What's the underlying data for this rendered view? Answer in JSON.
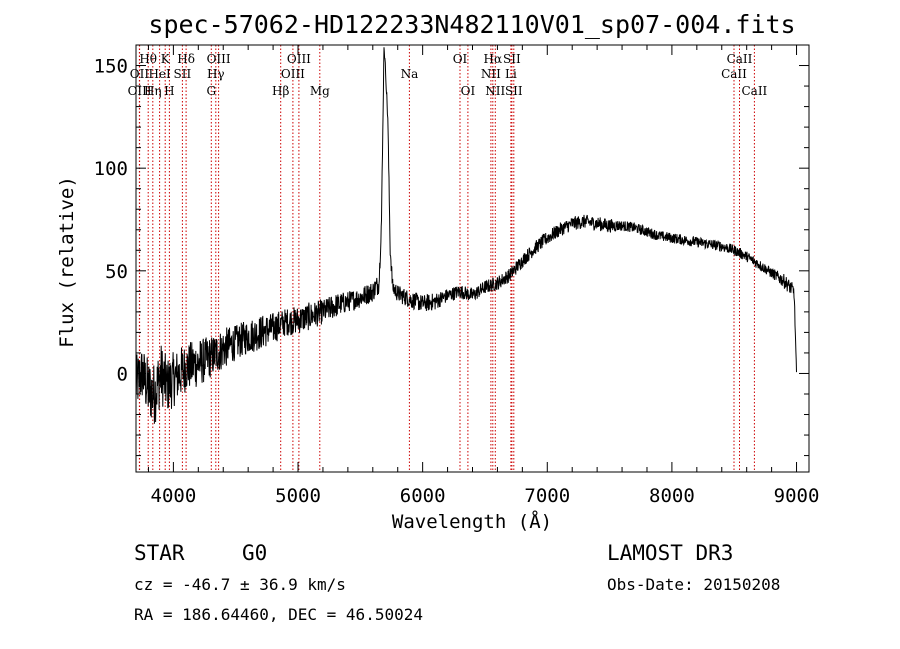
{
  "chart_data": {
    "type": "line",
    "title": "spec-57062-HD122233N482110V01_sp07-004.fits",
    "xlabel": "Wavelength (Å)",
    "ylabel": "Flux (relative)",
    "xlim": [
      3700,
      9100
    ],
    "ylim": [
      -48,
      160
    ],
    "xticks": [
      4000,
      5000,
      6000,
      7000,
      8000,
      9000
    ],
    "yticks": [
      0,
      50,
      100,
      150
    ],
    "spectrum": {
      "x": [
        3700,
        3750,
        3800,
        3850,
        3900,
        3950,
        4000,
        4100,
        4200,
        4300,
        4400,
        4500,
        4600,
        4700,
        4800,
        4900,
        5000,
        5100,
        5200,
        5300,
        5400,
        5500,
        5600,
        5650,
        5670,
        5690,
        5700,
        5720,
        5740,
        5760,
        5800,
        5900,
        6000,
        6100,
        6200,
        6300,
        6400,
        6500,
        6600,
        6700,
        6800,
        6900,
        7000,
        7100,
        7200,
        7300,
        7400,
        7500,
        7600,
        7700,
        7800,
        7900,
        8000,
        8100,
        8200,
        8300,
        8400,
        8500,
        8600,
        8700,
        8800,
        8900,
        8980,
        9000
      ],
      "y": [
        -5,
        0,
        -8,
        -10,
        0,
        -6,
        -3,
        3,
        5,
        8,
        12,
        15,
        18,
        20,
        22,
        25,
        26,
        28,
        30,
        33,
        35,
        37,
        40,
        44,
        75,
        160,
        150,
        125,
        60,
        42,
        39,
        36,
        34,
        35,
        38,
        40,
        38,
        42,
        44,
        48,
        55,
        61,
        66,
        70,
        73,
        74,
        73,
        72,
        72,
        71,
        69,
        67,
        66,
        65,
        64,
        63,
        62,
        60,
        57,
        53,
        49,
        45,
        40,
        0
      ],
      "noise": [
        8,
        8,
        9,
        9,
        9,
        8,
        8,
        7,
        7,
        6,
        6,
        5,
        5,
        5,
        4.5,
        4,
        4,
        4,
        3.5,
        3.5,
        3,
        3,
        3,
        3,
        2,
        1,
        1,
        2,
        2,
        2.5,
        2.5,
        2.5,
        2.5,
        2.5,
        2,
        2,
        2,
        2,
        2,
        2,
        2,
        2,
        2,
        2,
        2,
        2,
        2,
        2,
        1.5,
        1.5,
        1.5,
        1.5,
        1.5,
        1.5,
        1.5,
        1.5,
        1.5,
        1.5,
        1.5,
        1.5,
        1.5,
        2,
        2,
        1
      ]
    },
    "reference_lines": [
      {
        "label": "Hθ",
        "wavelength": 3798,
        "row": 1
      },
      {
        "label": "OII",
        "wavelength": 3727,
        "row": 2
      },
      {
        "label": "OIII",
        "wavelength": 3729,
        "row": 3
      },
      {
        "label": "Hη",
        "wavelength": 3835,
        "row": 3
      },
      {
        "label": "HeI",
        "wavelength": 3889,
        "row": 2
      },
      {
        "label": "K",
        "wavelength": 3934,
        "row": 1
      },
      {
        "label": "H",
        "wavelength": 3968,
        "row": 3
      },
      {
        "label": "SII",
        "wavelength": 4072,
        "row": 2
      },
      {
        "label": "Hδ",
        "wavelength": 4102,
        "row": 1
      },
      {
        "label": "G",
        "wavelength": 4304,
        "row": 3
      },
      {
        "label": "OIII",
        "wavelength": 4363,
        "row": 1
      },
      {
        "label": "Hγ",
        "wavelength": 4340,
        "row": 2
      },
      {
        "label": "Hβ",
        "wavelength": 4861,
        "row": 3
      },
      {
        "label": "OIII",
        "wavelength": 4959,
        "row": 2
      },
      {
        "label": "OIII",
        "wavelength": 5007,
        "row": 1
      },
      {
        "label": "Mg",
        "wavelength": 5175,
        "row": 3
      },
      {
        "label": "Na",
        "wavelength": 5894,
        "row": 2
      },
      {
        "label": "OI",
        "wavelength": 6300,
        "row": 1
      },
      {
        "label": "OI",
        "wavelength": 6363,
        "row": 3
      },
      {
        "label": "NII",
        "wavelength": 6548,
        "row": 2
      },
      {
        "label": "Hα",
        "wavelength": 6563,
        "row": 1
      },
      {
        "label": "NII",
        "wavelength": 6583,
        "row": 3
      },
      {
        "label": "SII",
        "wavelength": 6716,
        "row": 1
      },
      {
        "label": "Li",
        "wavelength": 6708,
        "row": 2
      },
      {
        "label": "SII",
        "wavelength": 6731,
        "row": 3
      },
      {
        "label": "CaII",
        "wavelength": 8498,
        "row": 2
      },
      {
        "label": "CaII",
        "wavelength": 8542,
        "row": 1
      },
      {
        "label": "CaII",
        "wavelength": 8662,
        "row": 3
      }
    ]
  },
  "info": {
    "class": "STAR",
    "subclass": "G0",
    "survey": "LAMOST DR3",
    "cz": "cz = -46.7 ± 36.9 km/s",
    "obs_date": "Obs-Date: 20150208",
    "coords": "RA = 186.64460, DEC =  46.50024"
  },
  "colors": {
    "spectrum": "#000000",
    "reference_line": "#cc0000",
    "axes": "#000000"
  }
}
